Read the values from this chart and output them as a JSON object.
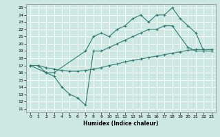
{
  "xlabel": "Humidex (Indice chaleur)",
  "xlim": [
    -0.5,
    23.5
  ],
  "ylim": [
    10.5,
    25.5
  ],
  "xticks": [
    0,
    1,
    2,
    3,
    4,
    5,
    6,
    7,
    8,
    9,
    10,
    11,
    12,
    13,
    14,
    15,
    16,
    17,
    18,
    19,
    20,
    21,
    22,
    23
  ],
  "yticks": [
    11,
    12,
    13,
    14,
    15,
    16,
    17,
    18,
    19,
    20,
    21,
    22,
    23,
    24,
    25
  ],
  "bg_color": "#cde8e3",
  "line_color": "#2d7a6e",
  "line1_x": [
    0,
    1,
    2,
    3,
    4,
    5,
    6,
    7,
    8,
    9,
    10,
    11,
    12,
    13,
    14,
    15,
    16,
    17,
    18,
    19,
    20,
    21,
    22,
    23
  ],
  "line1_y": [
    17,
    17,
    16.7,
    16.5,
    16.3,
    16.2,
    16.2,
    16.3,
    16.5,
    16.7,
    17.0,
    17.2,
    17.5,
    17.7,
    17.9,
    18.1,
    18.3,
    18.5,
    18.7,
    18.9,
    19.1,
    19.2,
    19.2,
    19.2
  ],
  "line2_x": [
    0,
    1,
    2,
    3,
    7,
    8,
    9,
    10,
    11,
    12,
    13,
    14,
    15,
    16,
    17,
    18,
    19,
    20,
    21,
    22,
    23
  ],
  "line2_y": [
    17,
    17,
    16,
    16,
    19,
    21,
    21.5,
    21,
    22,
    22.5,
    23.5,
    24,
    23,
    24,
    24,
    25,
    23.5,
    22.5,
    21.5,
    19,
    19
  ],
  "line3_x": [
    0,
    2,
    3,
    4,
    5,
    6,
    7,
    8,
    9,
    10,
    11,
    12,
    13,
    14,
    15,
    16,
    17,
    18,
    20,
    21,
    22,
    23
  ],
  "line3_y": [
    17,
    16,
    15.5,
    14,
    13,
    12.5,
    11.5,
    19,
    19,
    19.5,
    20,
    20.5,
    21,
    21.5,
    22,
    22,
    22.5,
    22.5,
    19.5,
    19,
    19,
    19
  ]
}
